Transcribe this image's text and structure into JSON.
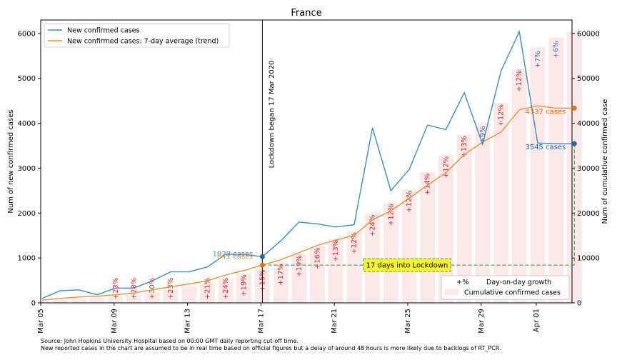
{
  "chart_data": {
    "type": "line",
    "title": "France",
    "ylabel_left": "Num of new confirmed cases",
    "ylabel_right": "Num of cumulative confirmed case",
    "ylim_left": [
      0,
      6300
    ],
    "ylim_right": [
      0,
      63000
    ],
    "yticks_left": [
      "0",
      "1000",
      "2000",
      "3000",
      "4000",
      "5000",
      "6000"
    ],
    "yticks_right": [
      "0",
      "10000",
      "20000",
      "30000",
      "40000",
      "50000",
      "60000"
    ],
    "xticks": [
      "Mar 05",
      "Mar 09",
      "Mar 13",
      "Mar 17",
      "Mar 21",
      "Mar 25",
      "Mar 29",
      "Apr 01"
    ],
    "dates": [
      "Mar 05",
      "Mar 06",
      "Mar 07",
      "Mar 08",
      "Mar 09",
      "Mar 10",
      "Mar 11",
      "Mar 12",
      "Mar 13",
      "Mar 14",
      "Mar 15",
      "Mar 16",
      "Mar 17",
      "Mar 18",
      "Mar 19",
      "Mar 20",
      "Mar 21",
      "Mar 22",
      "Mar 23",
      "Mar 24",
      "Mar 25",
      "Mar 26",
      "Mar 27",
      "Mar 28",
      "Mar 29",
      "Mar 30",
      "Mar 31",
      "Apr 01",
      "Apr 02",
      "Apr 03"
    ],
    "series": [
      {
        "name": "New confirmed cases",
        "color": "#3c8ebf",
        "values": [
          100,
          270,
          290,
          180,
          330,
          330,
          490,
          690,
          690,
          800,
          1080,
          1080,
          1028,
          1380,
          1800,
          1760,
          1690,
          1740,
          3900,
          2500,
          2970,
          3960,
          3860,
          4680,
          3530,
          5160,
          6040,
          3560,
          3545,
          3545
        ]
      },
      {
        "name": "New confirmed cases: 7-day average (trend)",
        "color": "#f28e2b",
        "values": [
          60,
          100,
          130,
          150,
          180,
          220,
          290,
          360,
          420,
          490,
          620,
          720,
          841,
          960,
          1120,
          1280,
          1400,
          1500,
          1850,
          2050,
          2330,
          2620,
          2900,
          3300,
          3580,
          3800,
          4300,
          4390,
          4337,
          4337
        ]
      },
      {
        "name": "Cumulative confirmed cases",
        "color": "#fbe9ea",
        "values": [
          400,
          700,
          1000,
          1200,
          1400,
          1800,
          2300,
          2900,
          3700,
          4500,
          5400,
          6600,
          7700,
          9000,
          10900,
          12600,
          14300,
          16000,
          19900,
          22300,
          25200,
          29100,
          32900,
          37500,
          40200,
          44500,
          52100,
          56900,
          59100,
          60400
        ]
      }
    ],
    "bar_labels": [
      {
        "date": "Mar 09",
        "text": "+23%"
      },
      {
        "date": "Mar 10",
        "text": "+28%"
      },
      {
        "date": "Mar 11",
        "text": "+30%"
      },
      {
        "date": "Mar 12",
        "text": "+23%"
      },
      {
        "date": "Mar 14",
        "text": "+21%"
      },
      {
        "date": "Mar 15",
        "text": "+24%"
      },
      {
        "date": "Mar 16",
        "text": "+19%"
      },
      {
        "date": "Mar 17",
        "text": "+15%"
      },
      {
        "date": "Mar 18",
        "text": "+17%"
      },
      {
        "date": "Mar 19",
        "text": "+19%"
      },
      {
        "date": "Mar 20",
        "text": "+16%"
      },
      {
        "date": "Mar 21",
        "text": "+13%"
      },
      {
        "date": "Mar 22",
        "text": "+12%"
      },
      {
        "date": "Mar 23",
        "text": "+24%"
      },
      {
        "date": "Mar 24",
        "text": "+12%"
      },
      {
        "date": "Mar 25",
        "text": "+12%"
      },
      {
        "date": "Mar 26",
        "text": "+14%"
      },
      {
        "date": "Mar 27",
        "text": "+12%"
      },
      {
        "date": "Mar 28",
        "text": "+13%"
      },
      {
        "date": "Mar 29",
        "text": "+9%"
      },
      {
        "date": "Mar 30",
        "text": "+12%"
      },
      {
        "date": "Mar 31",
        "text": "+12%"
      },
      {
        "date": "Apr 01",
        "text": "+7%"
      },
      {
        "date": "Apr 02",
        "text": "+6%"
      }
    ],
    "lockdown_label": "Lockdown began 17 Mar 2020",
    "lockdown_date": "Mar 17",
    "lockdown_new_label": "1028 cases",
    "lockdown_avg_label": "841 cases",
    "latest_new_label": "3545 cases",
    "latest_avg_label": "4337 cases",
    "span_label": "17 days into Lockdown",
    "legend_upper": [
      "New confirmed cases",
      "New confirmed cases: 7-day average (trend)"
    ],
    "legend_lower_sym": "+%",
    "legend_lower": [
      "Day-on-day growth",
      "Cumulative confirmed cases"
    ],
    "legend_upper_position": "top-left",
    "legend_lower_position": "bottom-right",
    "grid": false
  },
  "footnote": {
    "line1": "Source: John Hopkins University Hospital based on 00:00 GMT daily reporting cut-off time.",
    "line2": "New reported cases in the chart are assumed to be in real time based on official figures but a delay of around 48 hours is more likely due to backlogs of RT_PCR."
  }
}
